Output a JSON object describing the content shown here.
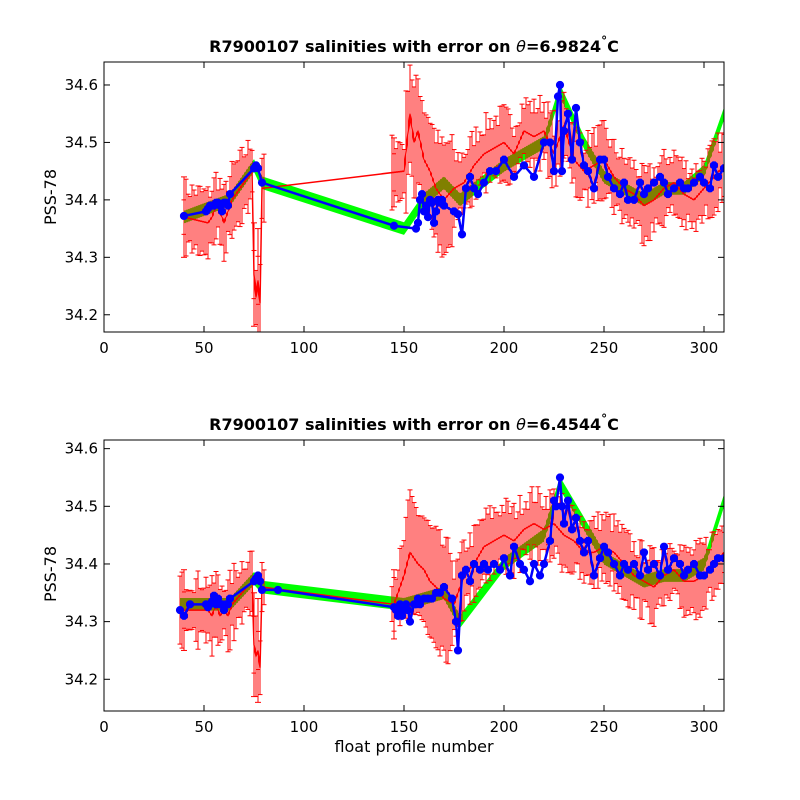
{
  "chart_data": [
    {
      "type": "line",
      "title_prefix": "R7900107 salinities with error on ",
      "title_symbol": "θ",
      "title_value": "=6.9824",
      "title_unit_deg": "°",
      "title_unit": "C",
      "xlabel": "",
      "ylabel": "PSS-78",
      "xlim": [
        0,
        310
      ],
      "ylim": [
        34.17,
        34.64
      ],
      "xticks": [
        0,
        50,
        100,
        150,
        200,
        250,
        300
      ],
      "yticks": [
        34.2,
        34.3,
        34.4,
        34.5,
        34.6
      ],
      "ytick_labels": [
        "34.2",
        "34.3",
        "34.4",
        "34.5",
        "34.6"
      ],
      "colors": {
        "band": "#00ff00",
        "error": "#ff0000",
        "points": "#0000ff"
      },
      "series": [
        {
          "role": "blue-points",
          "x": [
            40,
            51,
            52,
            53,
            54,
            55,
            56,
            57,
            58,
            59,
            60,
            61,
            62,
            63,
            75,
            76,
            77,
            79,
            145,
            156,
            157,
            158,
            159,
            160,
            161,
            162,
            163,
            164,
            165,
            166,
            167,
            168,
            169,
            170,
            175,
            177,
            179,
            181,
            183,
            185,
            187,
            190,
            193,
            196,
            200,
            205,
            210,
            215,
            220,
            223,
            225,
            227,
            228,
            229,
            230,
            232,
            234,
            236,
            238,
            240,
            242,
            245,
            248,
            250,
            252,
            255,
            258,
            260,
            262,
            265,
            268,
            270,
            272,
            275,
            278,
            280,
            282,
            285,
            288,
            290,
            292,
            295,
            298,
            300,
            303,
            305,
            307,
            310
          ],
          "y": [
            34.372,
            34.38,
            34.385,
            34.39,
            34.39,
            34.39,
            34.395,
            34.395,
            34.39,
            34.38,
            34.395,
            34.395,
            34.39,
            34.41,
            34.455,
            34.46,
            34.455,
            34.43,
            34.355,
            34.35,
            34.36,
            34.4,
            34.41,
            34.38,
            34.39,
            34.37,
            34.4,
            34.395,
            34.36,
            34.38,
            34.4,
            34.395,
            34.4,
            34.39,
            34.38,
            34.375,
            34.34,
            34.42,
            34.44,
            34.42,
            34.41,
            34.43,
            34.45,
            34.45,
            34.47,
            34.44,
            34.46,
            34.44,
            34.5,
            34.5,
            34.45,
            34.58,
            34.6,
            34.45,
            34.52,
            34.55,
            34.47,
            34.56,
            34.5,
            34.46,
            34.45,
            34.42,
            34.47,
            34.47,
            34.44,
            34.42,
            34.41,
            34.43,
            34.4,
            34.4,
            34.43,
            34.41,
            34.42,
            34.43,
            34.44,
            34.43,
            34.41,
            34.42,
            34.43,
            34.42,
            34.42,
            34.43,
            34.44,
            34.43,
            34.42,
            34.46,
            34.44,
            34.455
          ]
        },
        {
          "role": "red-line",
          "x": [
            40,
            52,
            54,
            56,
            58,
            60,
            62,
            64,
            74,
            75,
            76,
            77,
            78,
            79,
            150,
            153,
            155,
            157,
            160,
            163,
            166,
            170,
            175,
            180,
            185,
            190,
            195,
            200,
            205,
            210,
            215,
            220,
            225,
            230,
            235,
            240,
            245,
            250,
            255,
            260,
            265,
            270,
            275,
            280,
            285,
            290,
            295,
            300,
            305,
            310
          ],
          "y": [
            34.37,
            34.36,
            34.37,
            34.39,
            34.38,
            34.36,
            34.38,
            34.4,
            34.45,
            34.27,
            34.23,
            34.26,
            34.22,
            34.42,
            34.45,
            34.55,
            34.5,
            34.52,
            34.47,
            34.45,
            34.42,
            34.4,
            34.42,
            34.43,
            34.46,
            34.48,
            34.49,
            34.5,
            34.48,
            34.52,
            34.51,
            34.52,
            34.48,
            34.53,
            34.47,
            34.45,
            34.46,
            34.47,
            34.44,
            34.42,
            34.41,
            34.39,
            34.4,
            34.42,
            34.43,
            34.41,
            34.4,
            34.42,
            34.44,
            34.46
          ]
        },
        {
          "role": "green-band",
          "x": [
            40,
            63,
            75,
            79,
            150,
            160,
            170,
            178,
            200,
            220,
            228,
            240,
            250,
            260,
            270,
            280,
            290,
            300,
            310
          ],
          "y": [
            34.37,
            34.4,
            34.46,
            34.43,
            34.35,
            34.4,
            34.43,
            34.4,
            34.46,
            34.5,
            34.59,
            34.5,
            34.44,
            34.42,
            34.4,
            34.42,
            34.42,
            34.45,
            34.55
          ]
        }
      ]
    },
    {
      "type": "line",
      "title_prefix": "R7900107 salinities with error on ",
      "title_symbol": "θ",
      "title_value": "=6.4544",
      "title_unit_deg": "°",
      "title_unit": "C",
      "xlabel": "float profile number",
      "ylabel": "PSS-78",
      "xlim": [
        0,
        310
      ],
      "ylim": [
        34.145,
        34.615
      ],
      "xticks": [
        0,
        50,
        100,
        150,
        200,
        250,
        300
      ],
      "yticks": [
        34.2,
        34.3,
        34.4,
        34.5,
        34.6
      ],
      "ytick_labels": [
        "34.2",
        "34.3",
        "34.4",
        "34.5",
        "34.6"
      ],
      "colors": {
        "band": "#00ff00",
        "error": "#ff0000",
        "points": "#0000ff"
      },
      "series": [
        {
          "role": "blue-points",
          "x": [
            38,
            40,
            43,
            51,
            52,
            53,
            54,
            55,
            56,
            57,
            58,
            59,
            60,
            61,
            62,
            63,
            75,
            76,
            77,
            78,
            79,
            87,
            145,
            146,
            147,
            148,
            149,
            150,
            151,
            152,
            153,
            155,
            156,
            157,
            158,
            160,
            162,
            164,
            166,
            168,
            170,
            174,
            176,
            177,
            179,
            181,
            183,
            185,
            188,
            190,
            192,
            195,
            198,
            200,
            203,
            205,
            208,
            210,
            213,
            215,
            218,
            220,
            223,
            225,
            226,
            228,
            229,
            230,
            232,
            234,
            236,
            238,
            240,
            242,
            245,
            248,
            250,
            252,
            255,
            258,
            260,
            262,
            265,
            268,
            270,
            272,
            275,
            278,
            280,
            282,
            285,
            288,
            290,
            292,
            295,
            298,
            300,
            303,
            305,
            307,
            310
          ],
          "y": [
            34.32,
            34.31,
            34.33,
            34.33,
            34.325,
            34.33,
            34.335,
            34.345,
            34.33,
            34.34,
            34.33,
            34.33,
            34.32,
            34.33,
            34.33,
            34.34,
            34.37,
            34.375,
            34.38,
            34.37,
            34.355,
            34.355,
            34.325,
            34.32,
            34.31,
            34.33,
            34.31,
            34.32,
            34.33,
            34.32,
            34.3,
            34.33,
            34.33,
            34.34,
            34.33,
            34.34,
            34.34,
            34.34,
            34.35,
            34.35,
            34.36,
            34.34,
            34.3,
            34.25,
            34.38,
            34.39,
            34.37,
            34.4,
            34.39,
            34.4,
            34.39,
            34.4,
            34.39,
            34.41,
            34.38,
            34.43,
            34.4,
            34.39,
            34.37,
            34.4,
            34.38,
            34.4,
            34.44,
            34.51,
            34.5,
            34.55,
            34.5,
            34.47,
            34.51,
            34.46,
            34.48,
            34.44,
            34.42,
            34.44,
            34.38,
            34.41,
            34.43,
            34.42,
            34.4,
            34.38,
            34.4,
            34.39,
            34.4,
            34.38,
            34.42,
            34.39,
            34.4,
            34.38,
            34.43,
            34.39,
            34.41,
            34.4,
            34.38,
            34.39,
            34.4,
            34.38,
            34.38,
            34.39,
            34.4,
            34.41,
            34.41
          ]
        },
        {
          "role": "red-line",
          "x": [
            38,
            52,
            54,
            56,
            58,
            60,
            62,
            64,
            74,
            75,
            76,
            77,
            78,
            79,
            145,
            150,
            153,
            155,
            157,
            160,
            163,
            166,
            170,
            175,
            180,
            185,
            190,
            195,
            200,
            205,
            210,
            215,
            220,
            225,
            230,
            235,
            240,
            245,
            250,
            255,
            260,
            265,
            270,
            275,
            280,
            285,
            290,
            295,
            300,
            305,
            310
          ],
          "y": [
            34.32,
            34.32,
            34.31,
            34.33,
            34.31,
            34.32,
            34.31,
            34.33,
            34.37,
            34.26,
            34.24,
            34.25,
            34.22,
            34.36,
            34.33,
            34.38,
            34.42,
            34.41,
            34.4,
            34.39,
            34.37,
            34.36,
            34.34,
            34.33,
            34.38,
            34.4,
            34.43,
            34.44,
            34.45,
            34.44,
            34.46,
            34.47,
            34.46,
            34.47,
            34.45,
            34.44,
            34.42,
            34.42,
            34.43,
            34.42,
            34.4,
            34.38,
            34.37,
            34.36,
            34.38,
            34.39,
            34.37,
            34.37,
            34.38,
            34.4,
            34.42
          ]
        },
        {
          "role": "green-band",
          "x": [
            38,
            63,
            75,
            79,
            150,
            160,
            170,
            178,
            200,
            220,
            228,
            240,
            250,
            260,
            270,
            280,
            290,
            300,
            310
          ],
          "y": [
            34.33,
            34.33,
            34.375,
            34.36,
            34.33,
            34.34,
            34.35,
            34.3,
            34.4,
            34.45,
            34.54,
            34.47,
            34.41,
            34.39,
            34.37,
            34.38,
            34.38,
            34.4,
            34.51
          ]
        }
      ]
    }
  ]
}
